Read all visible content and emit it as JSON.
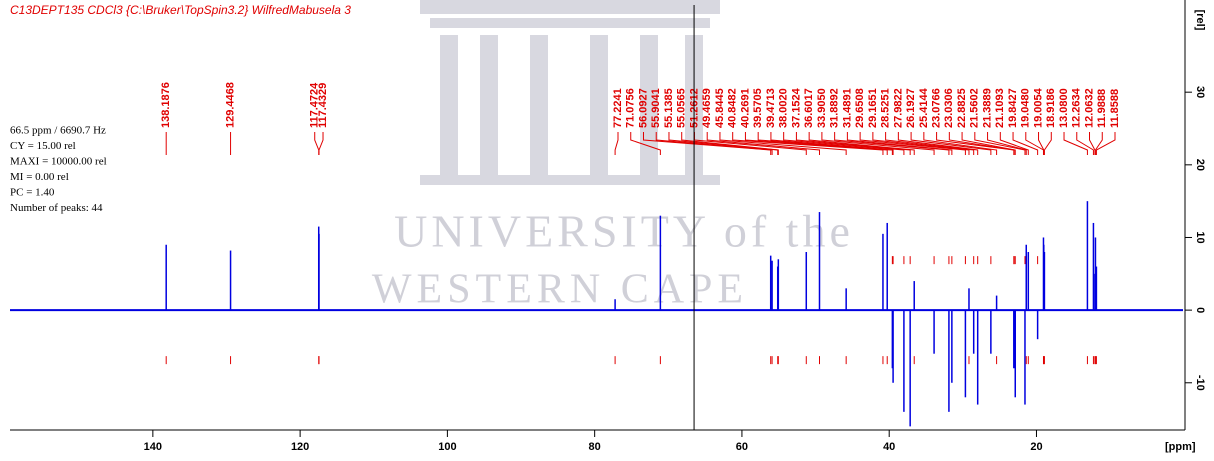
{
  "chart_data": {
    "type": "spectrum",
    "title": "C13DEPT135 CDCl3 {C:\\Bruker\\TopSpin3.2} WilfredMabusela 3",
    "info": [
      "66.5 ppm / 6690.7 Hz",
      "CY = 15.00 rel",
      "MAXI = 10000.00 rel",
      "MI = 0.00 rel",
      "PC = 1.40",
      "Number of peaks: 44"
    ],
    "cursor": 66.5,
    "watermark": [
      "UNIVERSITY of the",
      "WESTERN CAPE"
    ],
    "x_label": "[ppm]",
    "y_label": "[rel]",
    "x": [
      138.1876,
      129.4468,
      117.4724,
      117.4329,
      77.2241,
      71.0756,
      56.0927,
      55.9041,
      55.1385,
      55.0565,
      51.2612,
      49.4659,
      45.8445,
      40.8482,
      40.2691,
      39.5705,
      39.4713,
      38.002,
      37.1524,
      36.6017,
      33.905,
      31.8892,
      31.4891,
      29.6508,
      29.1651,
      28.5251,
      27.9822,
      26.1927,
      25.4144,
      23.0766,
      23.0306,
      22.8825,
      21.5602,
      21.3889,
      21.1093,
      19.8427,
      19.048,
      19.0054,
      18.9186,
      13.08,
      12.2634,
      12.0632,
      11.9888,
      11.8588
    ],
    "x_labels": [
      "138.1876",
      "129.4468",
      "117.4724",
      "117.4329",
      "77.2241",
      "71.0756",
      "56.0927",
      "55.9041",
      "55.1385",
      "55.0565",
      "51.2612",
      "49.4659",
      "45.8445",
      "40.8482",
      "40.2691",
      "39.5705",
      "39.4713",
      "38.0020",
      "37.1524",
      "36.6017",
      "33.9050",
      "31.8892",
      "31.4891",
      "29.6508",
      "29.1651",
      "28.5251",
      "27.9822",
      "26.1927",
      "25.4144",
      "23.0766",
      "23.0306",
      "22.8825",
      "21.5602",
      "21.3889",
      "21.1093",
      "19.8427",
      "19.0480",
      "19.0054",
      "18.9186",
      "13.0800",
      "12.2634",
      "12.0632",
      "11.9888",
      "11.8588"
    ],
    "values": [
      9,
      8.2,
      11.5,
      10.5,
      1.5,
      13,
      7.5,
      6.8,
      6,
      7,
      8,
      13.5,
      3,
      10.5,
      12,
      -8,
      -10,
      -14,
      -16,
      4,
      -6,
      -14,
      -10,
      -12,
      3,
      -6,
      -13,
      -6,
      2,
      -8,
      -5,
      -12,
      -13,
      9,
      8,
      -4,
      10,
      9,
      8,
      15,
      12,
      5,
      10,
      6
    ],
    "color": "#0000e0",
    "label_color": "#e00000",
    "xlim": [
      159.4,
      0.1
    ],
    "xticks": [
      140,
      120,
      100,
      80,
      60,
      40,
      20
    ],
    "ylim": [
      -16.5,
      42
    ],
    "yticks": [
      -10,
      0,
      10,
      20,
      30
    ]
  }
}
